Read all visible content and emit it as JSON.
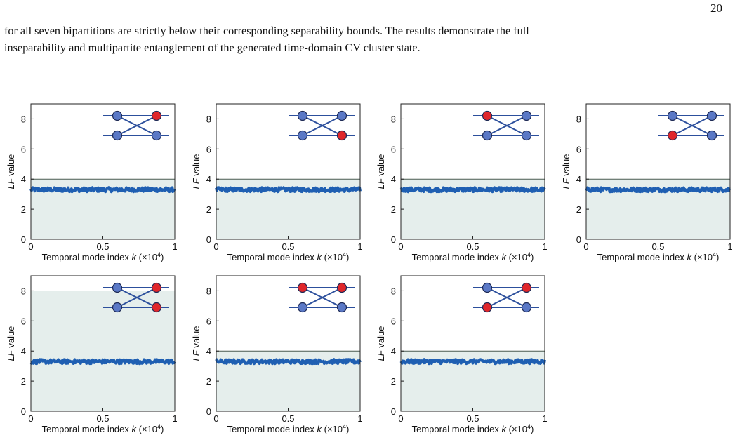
{
  "page": {
    "page_number": "20",
    "text_lines": [
      "for all seven bipartitions are strictly below their corresponding separability bounds. The results demonstrate the full",
      "inseparability and multipartite entanglement of the generated time-domain CV cluster state."
    ]
  },
  "colors": {
    "trace": "#1f5fb2",
    "region_fill": "#e5eeec",
    "bound_line": "#4a5a50",
    "node_red": "#e0262a",
    "node_blue": "#5a78c6",
    "graph_edge": "#2c4f9c"
  },
  "chart_data": [
    {
      "type": "line",
      "ylabel": "LF value",
      "xlabel": "Temporal mode index k (×10⁴)",
      "xlim": [
        0,
        1
      ],
      "ylim": [
        0,
        9
      ],
      "x_ticks": [
        "0",
        "0.5",
        "1"
      ],
      "y_ticks": [
        "0",
        "2",
        "4",
        "6",
        "8"
      ],
      "series": [
        {
          "mean": 3.3
        }
      ],
      "bound": 4,
      "nodes": {
        "tl": "blue",
        "tr": "red",
        "bl": "blue",
        "br": "blue"
      }
    },
    {
      "type": "line",
      "ylabel": "LF value",
      "xlabel": "Temporal mode index k (×10⁴)",
      "xlim": [
        0,
        1
      ],
      "ylim": [
        0,
        9
      ],
      "x_ticks": [
        "0",
        "0.5",
        "1"
      ],
      "y_ticks": [
        "0",
        "2",
        "4",
        "6",
        "8"
      ],
      "series": [
        {
          "mean": 3.3
        }
      ],
      "bound": 4,
      "nodes": {
        "tl": "blue",
        "tr": "blue",
        "bl": "blue",
        "br": "red"
      }
    },
    {
      "type": "line",
      "ylabel": "LF value",
      "xlabel": "Temporal mode index k (×10⁴)",
      "xlim": [
        0,
        1
      ],
      "ylim": [
        0,
        9
      ],
      "x_ticks": [
        "0",
        "0.5",
        "1"
      ],
      "y_ticks": [
        "0",
        "2",
        "4",
        "6",
        "8"
      ],
      "series": [
        {
          "mean": 3.3
        }
      ],
      "bound": 4,
      "nodes": {
        "tl": "red",
        "tr": "blue",
        "bl": "blue",
        "br": "blue"
      }
    },
    {
      "type": "line",
      "ylabel": "LF value",
      "xlabel": "Temporal mode index k (×10⁴)",
      "xlim": [
        0,
        1
      ],
      "ylim": [
        0,
        9
      ],
      "x_ticks": [
        "0",
        "0.5",
        "1"
      ],
      "y_ticks": [
        "0",
        "2",
        "4",
        "6",
        "8"
      ],
      "series": [
        {
          "mean": 3.3
        }
      ],
      "bound": 4,
      "nodes": {
        "tl": "blue",
        "tr": "blue",
        "bl": "red",
        "br": "blue"
      }
    },
    {
      "type": "line",
      "ylabel": "LF value",
      "xlabel": "Temporal mode index k (×10⁴)",
      "xlim": [
        0,
        1
      ],
      "ylim": [
        0,
        9
      ],
      "x_ticks": [
        "0",
        "0.5",
        "1"
      ],
      "y_ticks": [
        "0",
        "2",
        "4",
        "6",
        "8"
      ],
      "series": [
        {
          "mean": 3.3
        }
      ],
      "bound": 8,
      "nodes": {
        "tl": "blue",
        "tr": "red",
        "bl": "blue",
        "br": "red"
      }
    },
    {
      "type": "line",
      "ylabel": "LF value",
      "xlabel": "Temporal mode index k (×10⁴)",
      "xlim": [
        0,
        1
      ],
      "ylim": [
        0,
        9
      ],
      "x_ticks": [
        "0",
        "0.5",
        "1"
      ],
      "y_ticks": [
        "0",
        "2",
        "4",
        "6",
        "8"
      ],
      "series": [
        {
          "mean": 3.3
        }
      ],
      "bound": 4,
      "nodes": {
        "tl": "red",
        "tr": "red",
        "bl": "blue",
        "br": "blue"
      }
    },
    {
      "type": "line",
      "ylabel": "LF value",
      "xlabel": "Temporal mode index k (×10⁴)",
      "xlim": [
        0,
        1
      ],
      "ylim": [
        0,
        9
      ],
      "x_ticks": [
        "0",
        "0.5",
        "1"
      ],
      "y_ticks": [
        "0",
        "2",
        "4",
        "6",
        "8"
      ],
      "series": [
        {
          "mean": 3.3
        }
      ],
      "bound": 4,
      "nodes": {
        "tl": "blue",
        "tr": "red",
        "bl": "red",
        "br": "blue"
      }
    }
  ]
}
